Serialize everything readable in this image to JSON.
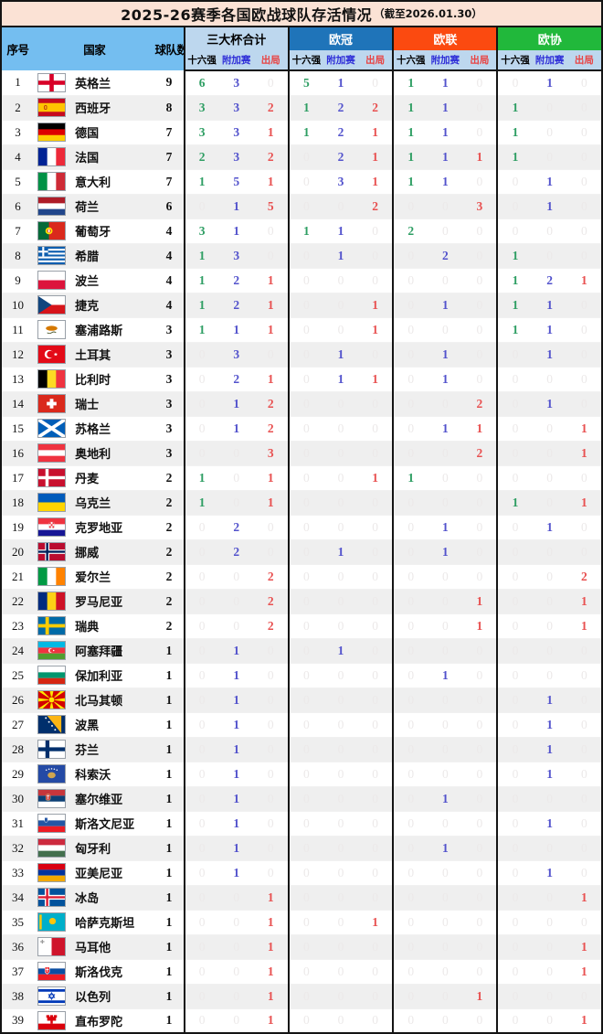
{
  "title": {
    "main": "2025-26赛季各国欧战球队存活情况",
    "note": "（截至2026.01.30）"
  },
  "colors": {
    "title_bg": "#FBE2D5",
    "left_header_bg": "#74BEF0",
    "subheader_bg": "#BDD7EE",
    "total_group_bg": "#BDD7EE",
    "ucl_group_bg": "#1F74B9",
    "uel_group_bg": "#FB4A10",
    "uecl_group_bg": "#21B83B",
    "r16_value": "#2E9E63",
    "playoff_value": "#5252CC",
    "out_value": "#E85050",
    "zero_value": "#ECE9E9",
    "row_alt_bg": "#EFEFEF"
  },
  "chart_data": {
    "type": "table",
    "title": "2025-26赛季各国欧战球队存活情况（截至2026.01.30）",
    "left_columns": [
      "序号",
      "国家",
      "球队数"
    ],
    "groups": [
      {
        "id": "total",
        "label": "三大杯合计"
      },
      {
        "id": "ucl",
        "label": "欧冠"
      },
      {
        "id": "uel",
        "label": "欧联"
      },
      {
        "id": "uecl",
        "label": "欧协"
      }
    ],
    "sub_columns": [
      {
        "id": "r16",
        "label": "十六强"
      },
      {
        "id": "playoff",
        "label": "附加赛"
      },
      {
        "id": "out",
        "label": "出局"
      }
    ],
    "rows": [
      {
        "no": 1,
        "country": "英格兰",
        "flag": "england",
        "teams": 9,
        "cells": [
          [
            6,
            3,
            0
          ],
          [
            5,
            1,
            0
          ],
          [
            1,
            1,
            0
          ],
          [
            0,
            1,
            0
          ]
        ]
      },
      {
        "no": 2,
        "country": "西班牙",
        "flag": "spain",
        "teams": 8,
        "cells": [
          [
            3,
            3,
            2
          ],
          [
            1,
            2,
            2
          ],
          [
            1,
            1,
            0
          ],
          [
            1,
            0,
            0
          ]
        ]
      },
      {
        "no": 3,
        "country": "德国",
        "flag": "germany",
        "teams": 7,
        "cells": [
          [
            3,
            3,
            1
          ],
          [
            1,
            2,
            1
          ],
          [
            1,
            1,
            0
          ],
          [
            1,
            0,
            0
          ]
        ]
      },
      {
        "no": 4,
        "country": "法国",
        "flag": "france",
        "teams": 7,
        "cells": [
          [
            2,
            3,
            2
          ],
          [
            0,
            2,
            1
          ],
          [
            1,
            1,
            1
          ],
          [
            1,
            0,
            0
          ]
        ]
      },
      {
        "no": 5,
        "country": "意大利",
        "flag": "italy",
        "teams": 7,
        "cells": [
          [
            1,
            5,
            1
          ],
          [
            0,
            3,
            1
          ],
          [
            1,
            1,
            0
          ],
          [
            0,
            1,
            0
          ]
        ]
      },
      {
        "no": 6,
        "country": "荷兰",
        "flag": "netherlands",
        "teams": 6,
        "cells": [
          [
            0,
            1,
            5
          ],
          [
            0,
            0,
            2
          ],
          [
            0,
            0,
            3
          ],
          [
            0,
            1,
            0
          ]
        ]
      },
      {
        "no": 7,
        "country": "葡萄牙",
        "flag": "portugal",
        "teams": 4,
        "cells": [
          [
            3,
            1,
            0
          ],
          [
            1,
            1,
            0
          ],
          [
            2,
            0,
            0
          ],
          [
            0,
            0,
            0
          ]
        ]
      },
      {
        "no": 8,
        "country": "希腊",
        "flag": "greece",
        "teams": 4,
        "cells": [
          [
            1,
            3,
            0
          ],
          [
            0,
            1,
            0
          ],
          [
            0,
            2,
            0
          ],
          [
            1,
            0,
            0
          ]
        ]
      },
      {
        "no": 9,
        "country": "波兰",
        "flag": "poland",
        "teams": 4,
        "cells": [
          [
            1,
            2,
            1
          ],
          [
            0,
            0,
            0
          ],
          [
            0,
            0,
            0
          ],
          [
            1,
            2,
            1
          ]
        ]
      },
      {
        "no": 10,
        "country": "捷克",
        "flag": "czechia",
        "teams": 4,
        "cells": [
          [
            1,
            2,
            1
          ],
          [
            0,
            0,
            1
          ],
          [
            0,
            1,
            0
          ],
          [
            1,
            1,
            0
          ]
        ]
      },
      {
        "no": 11,
        "country": "塞浦路斯",
        "flag": "cyprus",
        "teams": 3,
        "cells": [
          [
            1,
            1,
            1
          ],
          [
            0,
            0,
            1
          ],
          [
            0,
            0,
            0
          ],
          [
            1,
            1,
            0
          ]
        ]
      },
      {
        "no": 12,
        "country": "土耳其",
        "flag": "turkey",
        "teams": 3,
        "cells": [
          [
            0,
            3,
            0
          ],
          [
            0,
            1,
            0
          ],
          [
            0,
            1,
            0
          ],
          [
            0,
            1,
            0
          ]
        ]
      },
      {
        "no": 13,
        "country": "比利时",
        "flag": "belgium",
        "teams": 3,
        "cells": [
          [
            0,
            2,
            1
          ],
          [
            0,
            1,
            1
          ],
          [
            0,
            1,
            0
          ],
          [
            0,
            0,
            0
          ]
        ]
      },
      {
        "no": 14,
        "country": "瑞士",
        "flag": "switzerland",
        "teams": 3,
        "cells": [
          [
            0,
            1,
            2
          ],
          [
            0,
            0,
            0
          ],
          [
            0,
            0,
            2
          ],
          [
            0,
            1,
            0
          ]
        ]
      },
      {
        "no": 15,
        "country": "苏格兰",
        "flag": "scotland",
        "teams": 3,
        "cells": [
          [
            0,
            1,
            2
          ],
          [
            0,
            0,
            0
          ],
          [
            0,
            1,
            1
          ],
          [
            0,
            0,
            1
          ]
        ]
      },
      {
        "no": 16,
        "country": "奥地利",
        "flag": "austria",
        "teams": 3,
        "cells": [
          [
            0,
            0,
            3
          ],
          [
            0,
            0,
            0
          ],
          [
            0,
            0,
            2
          ],
          [
            0,
            0,
            1
          ]
        ]
      },
      {
        "no": 17,
        "country": "丹麦",
        "flag": "denmark",
        "teams": 2,
        "cells": [
          [
            1,
            0,
            1
          ],
          [
            0,
            0,
            1
          ],
          [
            1,
            0,
            0
          ],
          [
            0,
            0,
            0
          ]
        ]
      },
      {
        "no": 18,
        "country": "乌克兰",
        "flag": "ukraine",
        "teams": 2,
        "cells": [
          [
            1,
            0,
            1
          ],
          [
            0,
            0,
            0
          ],
          [
            0,
            0,
            0
          ],
          [
            1,
            0,
            1
          ]
        ]
      },
      {
        "no": 19,
        "country": "克罗地亚",
        "flag": "croatia",
        "teams": 2,
        "cells": [
          [
            0,
            2,
            0
          ],
          [
            0,
            0,
            0
          ],
          [
            0,
            1,
            0
          ],
          [
            0,
            1,
            0
          ]
        ]
      },
      {
        "no": 20,
        "country": "挪威",
        "flag": "norway",
        "teams": 2,
        "cells": [
          [
            0,
            2,
            0
          ],
          [
            0,
            1,
            0
          ],
          [
            0,
            1,
            0
          ],
          [
            0,
            0,
            0
          ]
        ]
      },
      {
        "no": 21,
        "country": "爱尔兰",
        "flag": "ireland",
        "teams": 2,
        "cells": [
          [
            0,
            0,
            2
          ],
          [
            0,
            0,
            0
          ],
          [
            0,
            0,
            0
          ],
          [
            0,
            0,
            2
          ]
        ]
      },
      {
        "no": 22,
        "country": "罗马尼亚",
        "flag": "romania",
        "teams": 2,
        "cells": [
          [
            0,
            0,
            2
          ],
          [
            0,
            0,
            0
          ],
          [
            0,
            0,
            1
          ],
          [
            0,
            0,
            1
          ]
        ]
      },
      {
        "no": 23,
        "country": "瑞典",
        "flag": "sweden",
        "teams": 2,
        "cells": [
          [
            0,
            0,
            2
          ],
          [
            0,
            0,
            0
          ],
          [
            0,
            0,
            1
          ],
          [
            0,
            0,
            1
          ]
        ]
      },
      {
        "no": 24,
        "country": "阿塞拜疆",
        "flag": "azerbaijan",
        "teams": 1,
        "cells": [
          [
            0,
            1,
            0
          ],
          [
            0,
            1,
            0
          ],
          [
            0,
            0,
            0
          ],
          [
            0,
            0,
            0
          ]
        ]
      },
      {
        "no": 25,
        "country": "保加利亚",
        "flag": "bulgaria",
        "teams": 1,
        "cells": [
          [
            0,
            1,
            0
          ],
          [
            0,
            0,
            0
          ],
          [
            0,
            1,
            0
          ],
          [
            0,
            0,
            0
          ]
        ]
      },
      {
        "no": 26,
        "country": "北马其顿",
        "flag": "macedonia",
        "teams": 1,
        "cells": [
          [
            0,
            1,
            0
          ],
          [
            0,
            0,
            0
          ],
          [
            0,
            0,
            0
          ],
          [
            0,
            1,
            0
          ]
        ]
      },
      {
        "no": 27,
        "country": "波黑",
        "flag": "bosnia",
        "teams": 1,
        "cells": [
          [
            0,
            1,
            0
          ],
          [
            0,
            0,
            0
          ],
          [
            0,
            0,
            0
          ],
          [
            0,
            1,
            0
          ]
        ]
      },
      {
        "no": 28,
        "country": "芬兰",
        "flag": "finland",
        "teams": 1,
        "cells": [
          [
            0,
            1,
            0
          ],
          [
            0,
            0,
            0
          ],
          [
            0,
            0,
            0
          ],
          [
            0,
            1,
            0
          ]
        ]
      },
      {
        "no": 29,
        "country": "科索沃",
        "flag": "kosovo",
        "teams": 1,
        "cells": [
          [
            0,
            1,
            0
          ],
          [
            0,
            0,
            0
          ],
          [
            0,
            0,
            0
          ],
          [
            0,
            1,
            0
          ]
        ]
      },
      {
        "no": 30,
        "country": "塞尔维亚",
        "flag": "serbia",
        "teams": 1,
        "cells": [
          [
            0,
            1,
            0
          ],
          [
            0,
            0,
            0
          ],
          [
            0,
            1,
            0
          ],
          [
            0,
            0,
            0
          ]
        ]
      },
      {
        "no": 31,
        "country": "斯洛文尼亚",
        "flag": "slovenia",
        "teams": 1,
        "cells": [
          [
            0,
            1,
            0
          ],
          [
            0,
            0,
            0
          ],
          [
            0,
            0,
            0
          ],
          [
            0,
            1,
            0
          ]
        ]
      },
      {
        "no": 32,
        "country": "匈牙利",
        "flag": "hungary",
        "teams": 1,
        "cells": [
          [
            0,
            1,
            0
          ],
          [
            0,
            0,
            0
          ],
          [
            0,
            1,
            0
          ],
          [
            0,
            0,
            0
          ]
        ]
      },
      {
        "no": 33,
        "country": "亚美尼亚",
        "flag": "armenia",
        "teams": 1,
        "cells": [
          [
            0,
            1,
            0
          ],
          [
            0,
            0,
            0
          ],
          [
            0,
            0,
            0
          ],
          [
            0,
            1,
            0
          ]
        ]
      },
      {
        "no": 34,
        "country": "冰岛",
        "flag": "iceland",
        "teams": 1,
        "cells": [
          [
            0,
            0,
            1
          ],
          [
            0,
            0,
            0
          ],
          [
            0,
            0,
            0
          ],
          [
            0,
            0,
            1
          ]
        ]
      },
      {
        "no": 35,
        "country": "哈萨克斯坦",
        "flag": "kazakhstan",
        "teams": 1,
        "cells": [
          [
            0,
            0,
            1
          ],
          [
            0,
            0,
            1
          ],
          [
            0,
            0,
            0
          ],
          [
            0,
            0,
            0
          ]
        ]
      },
      {
        "no": 36,
        "country": "马耳他",
        "flag": "malta",
        "teams": 1,
        "cells": [
          [
            0,
            0,
            1
          ],
          [
            0,
            0,
            0
          ],
          [
            0,
            0,
            0
          ],
          [
            0,
            0,
            1
          ]
        ]
      },
      {
        "no": 37,
        "country": "斯洛伐克",
        "flag": "slovakia",
        "teams": 1,
        "cells": [
          [
            0,
            0,
            1
          ],
          [
            0,
            0,
            0
          ],
          [
            0,
            0,
            0
          ],
          [
            0,
            0,
            1
          ]
        ]
      },
      {
        "no": 38,
        "country": "以色列",
        "flag": "israel",
        "teams": 1,
        "cells": [
          [
            0,
            0,
            1
          ],
          [
            0,
            0,
            0
          ],
          [
            0,
            0,
            1
          ],
          [
            0,
            0,
            0
          ]
        ]
      },
      {
        "no": 39,
        "country": "直布罗陀",
        "flag": "gibraltar",
        "teams": 1,
        "cells": [
          [
            0,
            0,
            1
          ],
          [
            0,
            0,
            0
          ],
          [
            0,
            0,
            0
          ],
          [
            0,
            0,
            1
          ]
        ]
      }
    ]
  }
}
